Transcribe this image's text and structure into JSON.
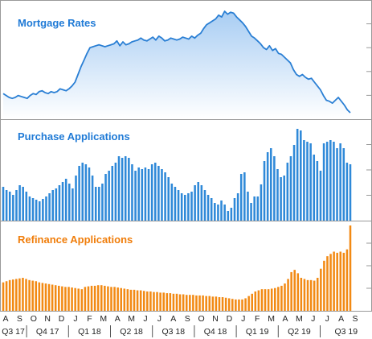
{
  "chart_data": [
    {
      "type": "area",
      "title": "Mortgage Rates",
      "series": [
        {
          "values": [
            4.1,
            4.08,
            4.06,
            4.05,
            4.06,
            4.08,
            4.07,
            4.06,
            4.05,
            4.08,
            4.1,
            4.09,
            4.12,
            4.13,
            4.11,
            4.1,
            4.12,
            4.11,
            4.12,
            4.15,
            4.14,
            4.13,
            4.15,
            4.18,
            4.22,
            4.3,
            4.38,
            4.45,
            4.52,
            4.58,
            4.59,
            4.6,
            4.61,
            4.6,
            4.59,
            4.6,
            4.61,
            4.62,
            4.65,
            4.6,
            4.64,
            4.61,
            4.62,
            4.64,
            4.65,
            4.66,
            4.68,
            4.66,
            4.65,
            4.67,
            4.69,
            4.66,
            4.7,
            4.68,
            4.65,
            4.66,
            4.68,
            4.67,
            4.66,
            4.67,
            4.69,
            4.68,
            4.67,
            4.7,
            4.68,
            4.71,
            4.73,
            4.78,
            4.82,
            4.84,
            4.86,
            4.88,
            4.92,
            4.9,
            4.96,
            4.93,
            4.95,
            4.94,
            4.9,
            4.87,
            4.84,
            4.8,
            4.75,
            4.7,
            4.68,
            4.65,
            4.62,
            4.58,
            4.56,
            4.6,
            4.55,
            4.57,
            4.52,
            4.51,
            4.48,
            4.45,
            4.42,
            4.35,
            4.3,
            4.28,
            4.3,
            4.27,
            4.25,
            4.26,
            4.22,
            4.18,
            4.14,
            4.08,
            4.03,
            4.02,
            4.0,
            4.03,
            4.06,
            4.02,
            3.98,
            3.93,
            3.9
          ]
        }
      ],
      "color": "#2a7fd4",
      "fill_top": "#a8cdf3",
      "fill_bottom": "#ffffff"
    },
    {
      "type": "bar",
      "title": "Purchase Applications",
      "series": [
        {
          "values": [
            42,
            38,
            36,
            32,
            38,
            44,
            42,
            36,
            30,
            28,
            26,
            24,
            27,
            30,
            34,
            38,
            40,
            44,
            48,
            52,
            46,
            40,
            56,
            68,
            72,
            70,
            66,
            56,
            42,
            42,
            46,
            58,
            62,
            68,
            72,
            80,
            78,
            80,
            78,
            70,
            62,
            66,
            64,
            66,
            64,
            70,
            72,
            68,
            64,
            60,
            54,
            46,
            42,
            38,
            34,
            32,
            34,
            36,
            44,
            48,
            44,
            38,
            32,
            28,
            22,
            20,
            25,
            20,
            12,
            16,
            28,
            34,
            58,
            60,
            36,
            22,
            30,
            30,
            45,
            74,
            85,
            90,
            80,
            64,
            54,
            56,
            72,
            80,
            94,
            114,
            112,
            100,
            98,
            96,
            82,
            74,
            62,
            96,
            98,
            100,
            98,
            90,
            96,
            90,
            72,
            70
          ],
          "ymax": 120
        }
      ],
      "color": "#2f89d8"
    },
    {
      "type": "bar",
      "title": "Refinance Applications",
      "series": [
        {
          "values": [
            50,
            52,
            54,
            55,
            56,
            57,
            58,
            56,
            54,
            53,
            52,
            50,
            49,
            48,
            47,
            46,
            45,
            44,
            43,
            42,
            42,
            41,
            40,
            39,
            38,
            42,
            43,
            44,
            44,
            45,
            45,
            44,
            43,
            42,
            42,
            41,
            40,
            39,
            38,
            37,
            37,
            36,
            36,
            35,
            34,
            34,
            33,
            33,
            32,
            32,
            31,
            31,
            30,
            30,
            29,
            29,
            28,
            28,
            28,
            27,
            27,
            27,
            26,
            26,
            25,
            25,
            24,
            24,
            23,
            22,
            21,
            20,
            20,
            20,
            22,
            26,
            30,
            34,
            36,
            38,
            38,
            38,
            39,
            40,
            42,
            44,
            48,
            56,
            68,
            72,
            66,
            58,
            56,
            54,
            54,
            53,
            58,
            74,
            88,
            96,
            100,
            104,
            102,
            104,
            102,
            108,
            150
          ],
          "ymax": 150
        }
      ],
      "color": "#f28a14"
    }
  ],
  "x_axis": {
    "months": [
      "A",
      "S",
      "O",
      "N",
      "D",
      "J",
      "F",
      "M",
      "A",
      "M",
      "J",
      "J",
      "A",
      "S",
      "O",
      "N",
      "D",
      "J",
      "F",
      "M",
      "A",
      "M",
      "J",
      "J",
      "A",
      "S"
    ],
    "quarters": [
      "Q3 17",
      "Q4 17",
      "Q1 18",
      "Q2 18",
      "Q3 18",
      "Q4 18",
      "Q1 19",
      "Q2 19",
      "Q3 19"
    ]
  }
}
